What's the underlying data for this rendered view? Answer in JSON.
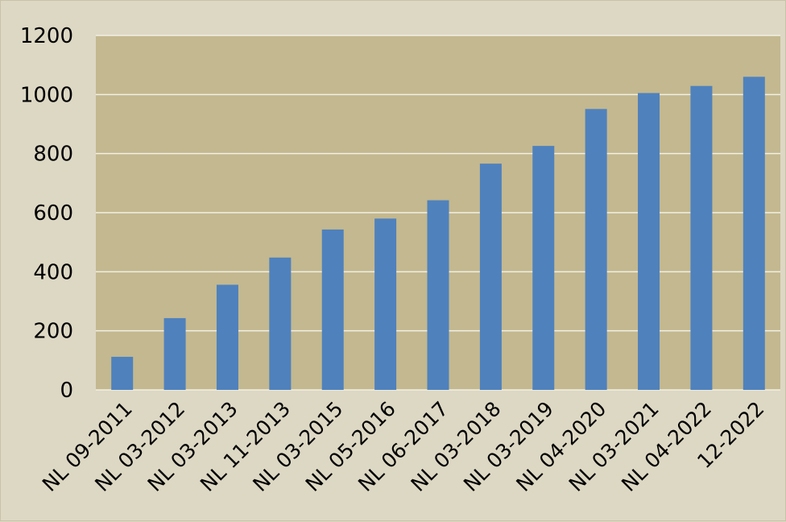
{
  "chart_data": {
    "type": "bar",
    "title": "",
    "xlabel": "",
    "ylabel": "",
    "categories": [
      "NL 09-2011",
      "NL 03-2012",
      "NL 03-2013",
      "NL 11-2013",
      "NL 03-2015",
      "NL 05-2016",
      "NL 06-2017",
      "NL 03-2018",
      "NL 03-2019",
      "NL 04-2020",
      "NL 03-2021",
      "NL 04-2022",
      "12-2022"
    ],
    "values": [
      112,
      243,
      356,
      448,
      543,
      580,
      642,
      766,
      826,
      951,
      1005,
      1029,
      1060
    ],
    "ylim": [
      0,
      1200
    ],
    "yticks": [
      0,
      200,
      400,
      600,
      800,
      1000,
      1200
    ],
    "grid": true,
    "legend": "none"
  },
  "colors": {
    "background": "#ddd8c4",
    "plot_area": "#c3b88f",
    "bar": "#4f81bd",
    "gridline": "#f2efe4"
  }
}
